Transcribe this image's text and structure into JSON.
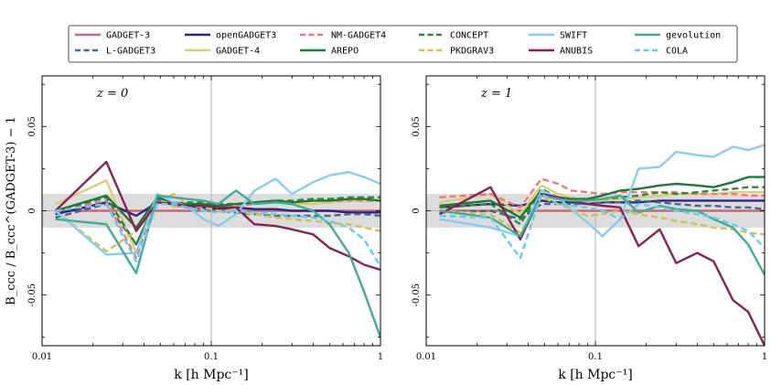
{
  "chart_data": {
    "type": "line",
    "legend": {
      "placement": "top-center",
      "entries": [
        {
          "name": "GADGET-3",
          "color": "#cc6677",
          "dash": "solid"
        },
        {
          "name": "L-GADGET3",
          "color": "#44698c",
          "dash": "dashed"
        },
        {
          "name": "openGADGET3",
          "color": "#332288",
          "dash": "solid"
        },
        {
          "name": "GADGET-4",
          "color": "#ddcc77",
          "dash": "solid"
        },
        {
          "name": "NM-GADGET4",
          "color": "#ee7777",
          "dash": "dashed"
        },
        {
          "name": "AREPO",
          "color": "#1e7a32",
          "dash": "solid"
        },
        {
          "name": "CONCEPT",
          "color": "#2a8a3a",
          "dash": "dashed"
        },
        {
          "name": "PKDGRAV3",
          "color": "#d4c050",
          "dash": "dashed"
        },
        {
          "name": "SWIFT",
          "color": "#88ccee",
          "dash": "solid"
        },
        {
          "name": "ANUBIS",
          "color": "#882255",
          "dash": "solid"
        },
        {
          "name": "gevolution",
          "color": "#44aa99",
          "dash": "solid"
        },
        {
          "name": "COLA",
          "color": "#66ccee",
          "dash": "dashed"
        }
      ]
    },
    "xlabel": "k [h Mpc⁻¹]",
    "ylabel": "B_ccc / B_ccc^(GADGET-3) − 1",
    "xscale": "log",
    "xlim": [
      0.01,
      1
    ],
    "ylim": [
      -0.08,
      0.08
    ],
    "band": [
      -0.01,
      0.01
    ],
    "xticks": [
      "0.01",
      "0.1",
      "1"
    ],
    "yticks": [
      {
        "value": 0.05,
        "label": "0.05"
      },
      {
        "value": 0,
        "label": "0"
      },
      {
        "value": -0.05,
        "label": "-0.05"
      }
    ],
    "k": [
      0.012,
      0.024,
      0.036,
      0.048,
      0.06,
      0.072,
      0.09,
      0.11,
      0.14,
      0.18,
      0.24,
      0.3,
      0.4,
      0.5,
      0.65,
      0.8,
      1.0
    ],
    "panels": [
      {
        "label": "z = 0",
        "series": [
          {
            "name": "GADGET-3",
            "values": [
              0,
              0,
              0,
              0,
              0,
              0,
              0,
              0,
              0,
              0,
              0,
              0,
              0,
              0,
              0,
              0,
              0
            ]
          },
          {
            "name": "openGADGET3",
            "values": [
              -0.002,
              0.005,
              -0.003,
              0.005,
              0.004,
              0.002,
              0.002,
              0.001,
              0.002,
              0.001,
              0.001,
              0.0,
              0.0,
              0.0,
              -0.001,
              -0.001,
              -0.001
            ]
          },
          {
            "name": "L-GADGET3",
            "values": [
              -0.004,
              0.004,
              -0.02,
              0.007,
              0.003,
              0.002,
              0.001,
              0.0,
              -0.001,
              -0.002,
              -0.003,
              -0.003,
              -0.003,
              -0.003,
              -0.002,
              -0.002,
              -0.003
            ]
          },
          {
            "name": "GADGET-4",
            "values": [
              0.004,
              0.018,
              -0.025,
              0.01,
              0.002,
              0.004,
              0.004,
              0.003,
              0.004,
              0.005,
              0.005,
              0.004,
              0.004,
              0.005,
              0.006,
              0.006,
              0.006
            ]
          },
          {
            "name": "NM-GADGET4",
            "values": [
              0.0,
              0.006,
              -0.028,
              0.008,
              0.003,
              0.003,
              0.002,
              0.002,
              0.003,
              0.004,
              0.005,
              0.005,
              0.006,
              0.006,
              0.006,
              0.006,
              0.006
            ]
          },
          {
            "name": "CONCEPT",
            "values": [
              0.0,
              0.008,
              -0.02,
              0.008,
              0.004,
              0.005,
              0.005,
              0.004,
              0.004,
              0.005,
              0.006,
              0.006,
              0.007,
              0.007,
              0.008,
              0.008,
              0.008
            ]
          },
          {
            "name": "PKDGRAV3",
            "values": [
              0.0,
              -0.024,
              -0.012,
              0.005,
              0.01,
              0.004,
              0.002,
              0.0,
              0.0,
              -0.002,
              -0.004,
              -0.005,
              -0.006,
              -0.007,
              -0.008,
              -0.01,
              -0.012
            ]
          },
          {
            "name": "AREPO",
            "values": [
              0.0,
              0.009,
              -0.01,
              0.008,
              0.005,
              0.004,
              0.004,
              0.003,
              0.004,
              0.005,
              0.006,
              0.005,
              0.006,
              0.006,
              0.007,
              0.007,
              0.006
            ]
          },
          {
            "name": "SWIFT",
            "values": [
              0.0,
              -0.026,
              -0.025,
              0.01,
              0.005,
              0.003,
              -0.005,
              -0.009,
              -0.002,
              0.012,
              0.019,
              0.01,
              0.017,
              0.021,
              0.023,
              0.02,
              0.016
            ]
          },
          {
            "name": "ANUBIS",
            "values": [
              0.0,
              0.029,
              -0.012,
              0.005,
              0.004,
              0.003,
              0.003,
              0.002,
              0.002,
              -0.008,
              -0.009,
              -0.011,
              -0.014,
              -0.022,
              -0.027,
              -0.032,
              -0.035
            ]
          },
          {
            "name": "gevolution",
            "values": [
              -0.005,
              -0.008,
              -0.037,
              0.009,
              0.008,
              0.007,
              0.006,
              0.004,
              0.012,
              0.004,
              0.005,
              0.004,
              0.0,
              -0.008,
              -0.025,
              -0.048,
              -0.075
            ]
          },
          {
            "name": "COLA",
            "values": [
              0.0,
              0.004,
              -0.03,
              0.004,
              0.004,
              0.002,
              0.0,
              -0.001,
              0.0,
              -0.001,
              -0.002,
              -0.003,
              -0.004,
              -0.006,
              -0.01,
              -0.017,
              -0.033
            ]
          }
        ]
      },
      {
        "label": "z = 1",
        "series": [
          {
            "name": "GADGET-3",
            "values": [
              0,
              0,
              0,
              0,
              0,
              0,
              0,
              0,
              0,
              0,
              0,
              0,
              0,
              0,
              0,
              0,
              0
            ]
          },
          {
            "name": "openGADGET3",
            "values": [
              0.002,
              0.004,
              0.003,
              0.006,
              0.005,
              0.005,
              0.004,
              0.005,
              0.005,
              0.005,
              0.006,
              0.006,
              0.006,
              0.006,
              0.006,
              0.006,
              0.006
            ]
          },
          {
            "name": "L-GADGET3",
            "values": [
              -0.001,
              0.0,
              -0.005,
              0.004,
              0.004,
              0.004,
              0.004,
              0.005,
              0.005,
              0.006,
              0.005,
              0.004,
              0.003,
              0.003,
              0.002,
              0.002,
              0.001
            ]
          },
          {
            "name": "GADGET-4",
            "values": [
              0.005,
              0.01,
              -0.002,
              0.015,
              0.01,
              0.008,
              0.006,
              0.006,
              0.007,
              0.008,
              0.009,
              0.01,
              0.01,
              0.01,
              0.011,
              0.011,
              0.011
            ]
          },
          {
            "name": "NM-GADGET4",
            "values": [
              0.008,
              0.01,
              0.002,
              0.019,
              0.016,
              0.012,
              0.011,
              0.01,
              0.011,
              0.011,
              0.011,
              0.011,
              0.01,
              0.01,
              0.01,
              0.009,
              0.009
            ]
          },
          {
            "name": "CONCEPT",
            "values": [
              0.002,
              0.004,
              -0.008,
              0.013,
              0.008,
              0.007,
              0.006,
              0.007,
              0.008,
              0.009,
              0.011,
              0.01,
              0.011,
              0.012,
              0.013,
              0.014,
              0.014
            ]
          },
          {
            "name": "PKDGRAV3",
            "values": [
              0.0,
              -0.002,
              -0.013,
              0.008,
              0.004,
              0.001,
              -0.003,
              -0.002,
              0.0,
              -0.002,
              -0.004,
              -0.006,
              -0.008,
              -0.01,
              -0.011,
              -0.013,
              -0.014
            ]
          },
          {
            "name": "AREPO",
            "values": [
              0.003,
              0.006,
              -0.004,
              0.012,
              0.008,
              0.007,
              0.007,
              0.009,
              0.012,
              0.013,
              0.015,
              0.016,
              0.015,
              0.014,
              0.017,
              0.02,
              0.02
            ]
          },
          {
            "name": "SWIFT",
            "values": [
              -0.005,
              -0.01,
              -0.015,
              0.012,
              0.008,
              0.001,
              -0.007,
              -0.015,
              -0.005,
              0.025,
              0.026,
              0.035,
              0.033,
              0.032,
              0.038,
              0.036,
              0.039
            ]
          },
          {
            "name": "ANUBIS",
            "values": [
              -0.002,
              0.014,
              -0.017,
              0.01,
              0.008,
              0.006,
              0.004,
              0.003,
              0.002,
              -0.021,
              -0.011,
              -0.031,
              -0.025,
              -0.03,
              -0.053,
              -0.06,
              -0.08
            ]
          },
          {
            "name": "gevolution",
            "values": [
              0.0,
              -0.004,
              -0.015,
              0.009,
              0.007,
              0.006,
              0.006,
              0.007,
              0.009,
              -0.001,
              0.003,
              0.001,
              0.0,
              -0.005,
              -0.01,
              -0.02,
              -0.038
            ]
          },
          {
            "name": "COLA",
            "values": [
              -0.003,
              -0.004,
              -0.028,
              0.01,
              0.004,
              0.003,
              0.002,
              0.0,
              -0.005,
              0.004,
              0.002,
              0.0,
              -0.002,
              -0.004,
              -0.008,
              -0.012,
              -0.022
            ]
          }
        ]
      }
    ]
  }
}
